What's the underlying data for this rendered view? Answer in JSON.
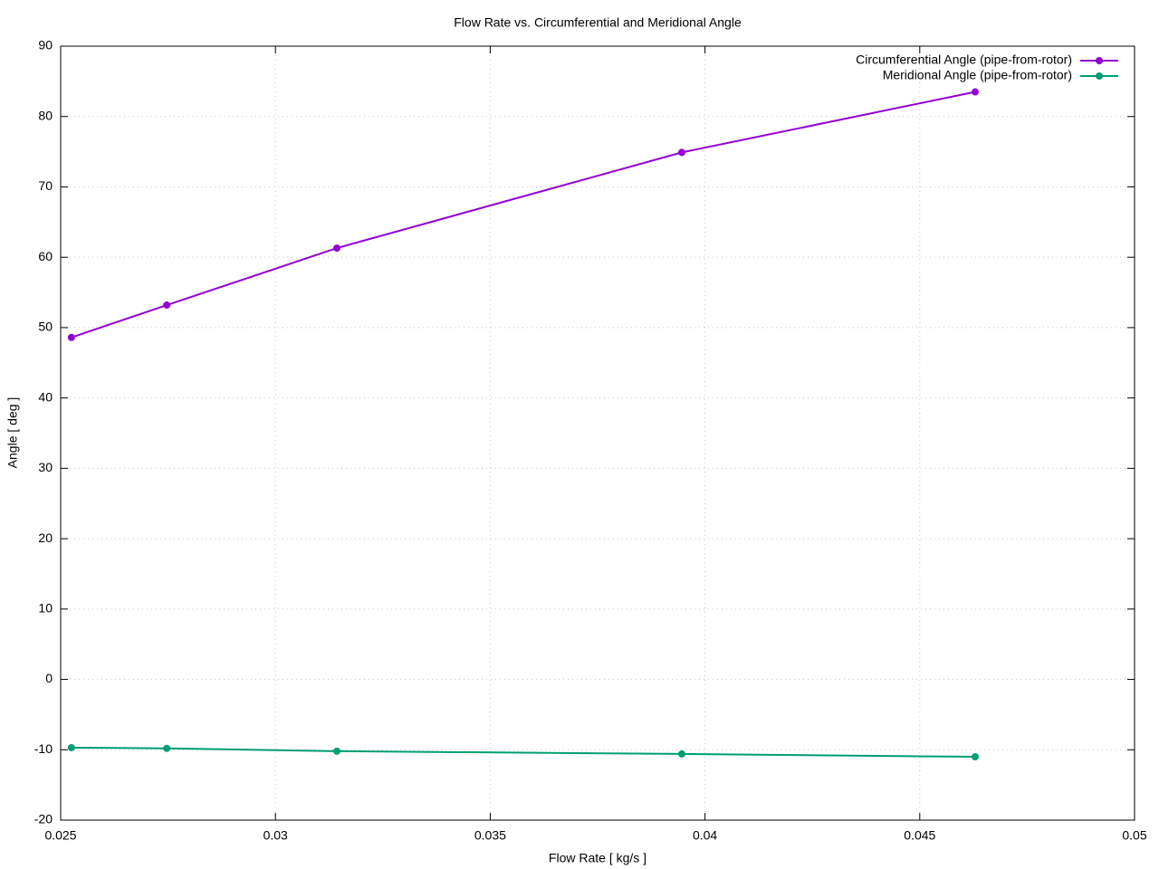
{
  "chart_data": {
    "type": "line",
    "title": "Flow Rate vs. Circumferential and Meridional Angle",
    "x_label": "Flow Rate [ kg/s ]",
    "y_label": "Angle [ deg ]",
    "x": [
      0.02525,
      0.02747,
      0.03143,
      0.03946,
      0.04629
    ],
    "series": [
      {
        "name": "Circumferential Angle (pipe-from-rotor)",
        "color": "#9400d3",
        "values": [
          48.6,
          53.2,
          61.3,
          74.9,
          83.5
        ]
      },
      {
        "name": "Meridional Angle (pipe-from-rotor)",
        "color": "#009e73",
        "values": [
          -9.7,
          -9.8,
          -10.2,
          -10.6,
          -11.0
        ]
      }
    ],
    "xlim": [
      0.025,
      0.05
    ],
    "xticks": [
      0.025,
      0.03,
      0.035,
      0.04,
      0.045,
      0.05
    ],
    "ylim": [
      -20,
      90
    ],
    "yticks": [
      -20,
      -10,
      0,
      10,
      20,
      30,
      40,
      50,
      60,
      70,
      80,
      90
    ],
    "grid": true,
    "legend": "top-right"
  }
}
